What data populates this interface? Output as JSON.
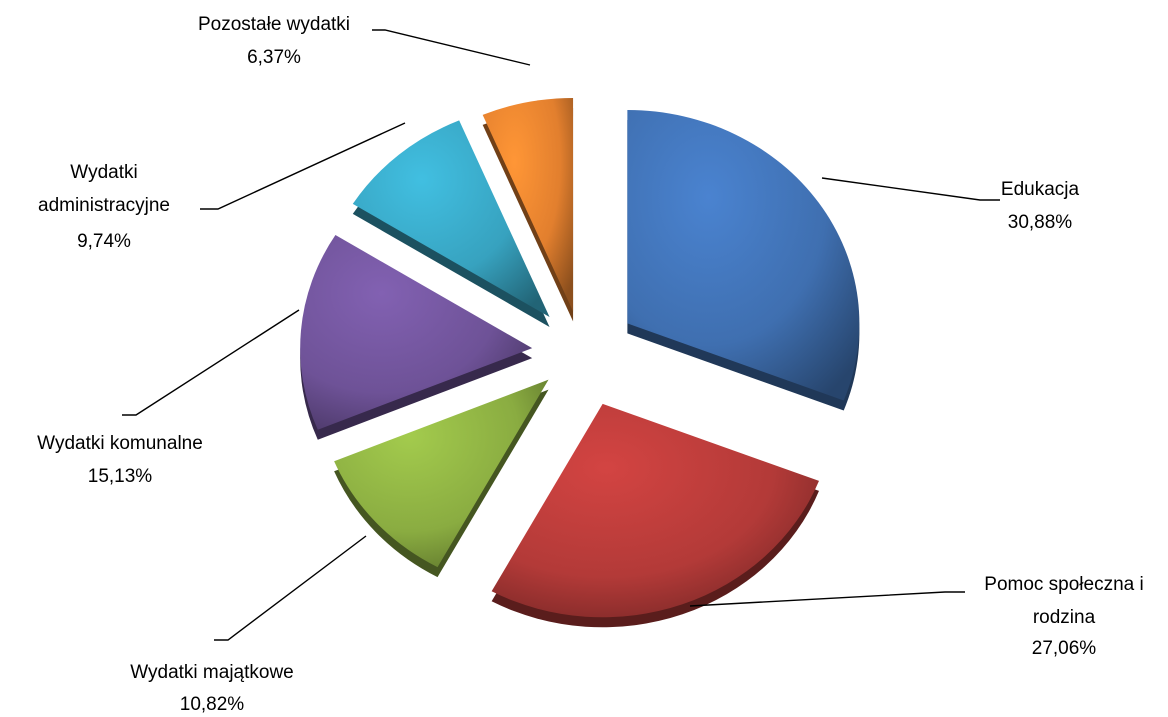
{
  "chart_data": {
    "type": "pie",
    "title": "",
    "slices": [
      {
        "label": "Edukacja",
        "value": 30.88,
        "display": "30,88%",
        "color": "#3f6fb0"
      },
      {
        "label": "Pomoc społeczna i rodzina",
        "value": 27.06,
        "display": "27,06%",
        "color": "#b33a38"
      },
      {
        "label": "Wydatki majątkowe",
        "value": 10.82,
        "display": "10,82%",
        "color": "#8aac41"
      },
      {
        "label": "Wydatki komunalne",
        "value": 15.13,
        "display": "15,13%",
        "color": "#6e5297"
      },
      {
        "label": "Wydatki administracyjne",
        "value": 9.74,
        "display": "9,74%",
        "color": "#37a2bf"
      },
      {
        "label": "Pozostałe wydatki",
        "value": 6.37,
        "display": "6,37%",
        "color": "#e27f2e"
      }
    ],
    "legend": "none",
    "style": "exploded-3d-pie"
  }
}
